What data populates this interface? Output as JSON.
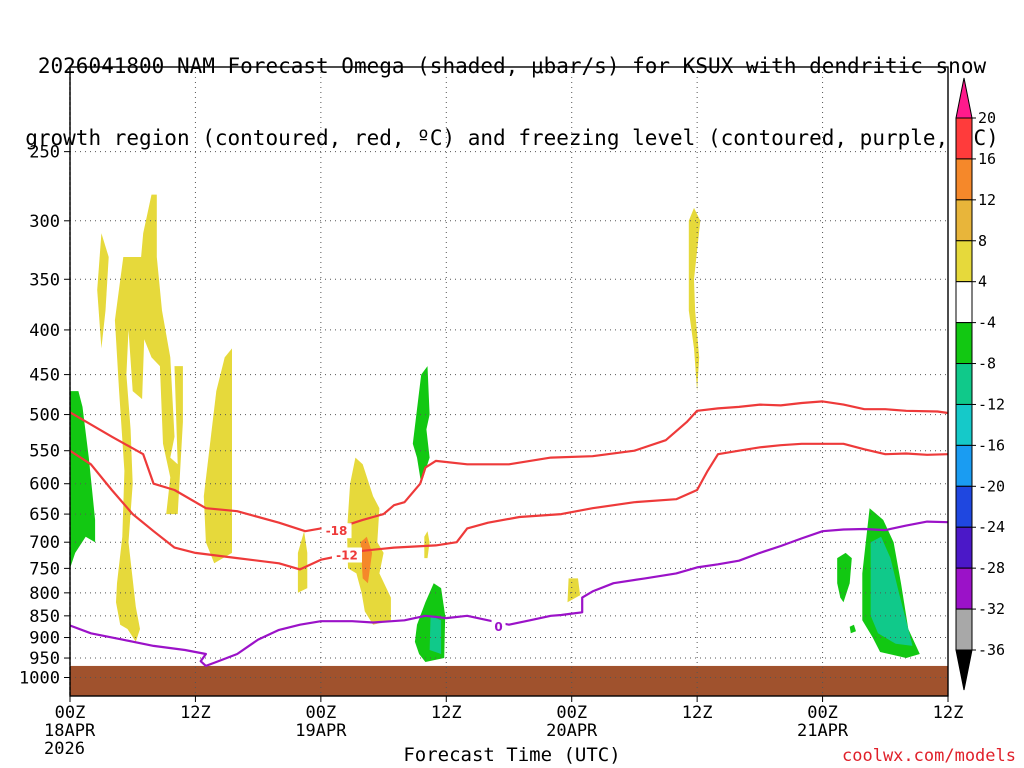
{
  "title_lines": [
    "2026041800 NAM Forecast Omega (shaded, μbar/s) for KSUX with dendritic snow",
    "growth region (contoured, red, ºC) and freezing level (contoured, purple, ºC)"
  ],
  "x_axis_title": "Forecast Time (UTC)",
  "credit": "coolwx.com/models",
  "chart_data": {
    "type": "time-height cross section",
    "station": "KSUX",
    "run": "2026041800",
    "x_unit": "forecast hour",
    "x_range": [
      0,
      84
    ],
    "x_ticks": [
      {
        "hour": 0,
        "lines": [
          "00Z",
          "18APR",
          "2026"
        ]
      },
      {
        "hour": 12,
        "lines": [
          "12Z"
        ]
      },
      {
        "hour": 24,
        "lines": [
          "00Z",
          "19APR"
        ]
      },
      {
        "hour": 36,
        "lines": [
          "12Z"
        ]
      },
      {
        "hour": 48,
        "lines": [
          "00Z",
          "20APR"
        ]
      },
      {
        "hour": 60,
        "lines": [
          "12Z"
        ]
      },
      {
        "hour": 72,
        "lines": [
          "00Z",
          "21APR"
        ]
      },
      {
        "hour": 84,
        "lines": [
          "12Z"
        ]
      }
    ],
    "y_unit": "hPa",
    "y_range": [
      1050,
      200
    ],
    "y_ticks": [
      250,
      300,
      350,
      400,
      450,
      500,
      550,
      600,
      650,
      700,
      750,
      800,
      850,
      900,
      950,
      1000
    ],
    "colorbar": {
      "ticks": [
        "20",
        "16",
        "12",
        "8",
        "4",
        "-4",
        "-8",
        "-12",
        "-16",
        "-20",
        "-24",
        "-28",
        "-32",
        "-36"
      ],
      "colors": [
        "#ff1a8c",
        "#ff3b3b",
        "#f5882a",
        "#e8b53a",
        "#e6d93b",
        "#ffffff",
        "#12c812",
        "#10c98a",
        "#15c9c9",
        "#1a9cf2",
        "#1f47e0",
        "#4b18c8",
        "#9b12c8",
        "#a8a8a8",
        "#000000"
      ]
    },
    "shaded_regions": [
      {
        "color": "#e6d93b",
        "points": [
          [
            3.0,
            310
          ],
          [
            3.7,
            330
          ],
          [
            3.4,
            380
          ],
          [
            3.0,
            420
          ],
          [
            2.6,
            360
          ]
        ]
      },
      {
        "color": "#e6d93b",
        "points": [
          [
            4.5,
            780
          ],
          [
            5.0,
            690
          ],
          [
            5.2,
            580
          ],
          [
            4.7,
            470
          ],
          [
            4.3,
            390
          ],
          [
            5.1,
            330
          ],
          [
            6.8,
            330
          ],
          [
            7.0,
            310
          ],
          [
            7.8,
            280
          ],
          [
            8.3,
            280
          ],
          [
            8.3,
            330
          ],
          [
            8.8,
            380
          ],
          [
            9.6,
            430
          ],
          [
            10.0,
            530
          ],
          [
            9.6,
            560
          ],
          [
            10.3,
            570
          ],
          [
            10.0,
            440
          ],
          [
            10.8,
            440
          ],
          [
            10.8,
            510
          ],
          [
            10.3,
            650
          ],
          [
            9.2,
            650
          ],
          [
            9.6,
            590
          ],
          [
            8.9,
            540
          ],
          [
            8.6,
            440
          ],
          [
            7.8,
            430
          ],
          [
            7.1,
            410
          ],
          [
            6.9,
            480
          ],
          [
            6.0,
            470
          ],
          [
            5.6,
            400
          ],
          [
            5.4,
            450
          ],
          [
            5.8,
            520
          ],
          [
            6.0,
            600
          ],
          [
            5.6,
            700
          ],
          [
            6.3,
            830
          ],
          [
            6.7,
            880
          ],
          [
            6.3,
            910
          ],
          [
            5.5,
            880
          ],
          [
            4.8,
            870
          ],
          [
            4.4,
            820
          ]
        ]
      },
      {
        "color": "#e6d93b",
        "points": [
          [
            12.8,
            620
          ],
          [
            14.0,
            470
          ],
          [
            14.8,
            430
          ],
          [
            15.5,
            420
          ],
          [
            15.5,
            500
          ],
          [
            15.5,
            720
          ],
          [
            13.8,
            740
          ],
          [
            13.0,
            700
          ]
        ]
      },
      {
        "color": "#e6d93b",
        "points": [
          [
            21.8,
            720
          ],
          [
            22.4,
            680
          ],
          [
            22.7,
            720
          ],
          [
            22.7,
            790
          ],
          [
            21.8,
            800
          ]
        ]
      },
      {
        "color": "#e6d93b",
        "points": [
          [
            26.5,
            680
          ],
          [
            26.8,
            600
          ],
          [
            27.3,
            560
          ],
          [
            28.0,
            570
          ],
          [
            29.0,
            620
          ],
          [
            29.6,
            640
          ],
          [
            29.4,
            700
          ],
          [
            30.0,
            720
          ],
          [
            29.6,
            760
          ],
          [
            30.7,
            810
          ],
          [
            30.7,
            860
          ],
          [
            29.0,
            870
          ],
          [
            28.2,
            840
          ],
          [
            27.9,
            800
          ],
          [
            27.4,
            760
          ],
          [
            26.6,
            750
          ]
        ]
      },
      {
        "color": "#f5882a",
        "points": [
          [
            27.8,
            700
          ],
          [
            28.4,
            690
          ],
          [
            28.9,
            720
          ],
          [
            28.5,
            780
          ],
          [
            28.0,
            770
          ]
        ]
      },
      {
        "color": "#e6d93b",
        "points": [
          [
            33.9,
            690
          ],
          [
            34.2,
            680
          ],
          [
            34.4,
            700
          ],
          [
            34.2,
            730
          ],
          [
            33.9,
            730
          ]
        ]
      },
      {
        "color": "#e6d93b",
        "points": [
          [
            47.7,
            770
          ],
          [
            48.6,
            770
          ],
          [
            48.8,
            805
          ],
          [
            47.6,
            820
          ]
        ]
      },
      {
        "color": "#e6d93b",
        "points": [
          [
            59.2,
            300
          ],
          [
            59.7,
            290
          ],
          [
            60.3,
            300
          ],
          [
            59.7,
            350
          ],
          [
            59.8,
            380
          ],
          [
            60.2,
            430
          ],
          [
            60.0,
            470
          ],
          [
            59.7,
            420
          ],
          [
            59.2,
            380
          ]
        ]
      },
      {
        "color": "#12c812",
        "points": [
          [
            0.0,
            470
          ],
          [
            0.8,
            470
          ],
          [
            1.2,
            490
          ],
          [
            1.8,
            560
          ],
          [
            2.4,
            660
          ],
          [
            2.4,
            700
          ],
          [
            1.5,
            690
          ],
          [
            0.5,
            720
          ],
          [
            0.0,
            750
          ]
        ]
      },
      {
        "color": "#12c812",
        "points": [
          [
            32.8,
            540
          ],
          [
            33.6,
            450
          ],
          [
            34.2,
            440
          ],
          [
            34.4,
            500
          ],
          [
            34.1,
            520
          ],
          [
            34.4,
            560
          ],
          [
            33.6,
            600
          ],
          [
            33.2,
            560
          ]
        ]
      },
      {
        "color": "#12c812",
        "points": [
          [
            33.2,
            870
          ],
          [
            34.0,
            820
          ],
          [
            34.8,
            780
          ],
          [
            35.5,
            790
          ],
          [
            35.9,
            850
          ],
          [
            35.8,
            950
          ],
          [
            34.0,
            960
          ],
          [
            33.4,
            940
          ],
          [
            33.0,
            910
          ]
        ]
      },
      {
        "color": "#10c98a",
        "points": [
          [
            34.5,
            850
          ],
          [
            35.5,
            860
          ],
          [
            35.5,
            940
          ],
          [
            34.4,
            930
          ]
        ]
      },
      {
        "color": "#12c812",
        "points": [
          [
            73.4,
            730
          ],
          [
            74.2,
            720
          ],
          [
            74.8,
            730
          ],
          [
            74.6,
            780
          ],
          [
            74.0,
            820
          ],
          [
            73.7,
            810
          ],
          [
            73.4,
            780
          ]
        ]
      },
      {
        "color": "#12c812",
        "points": [
          [
            75.8,
            760
          ],
          [
            76.5,
            640
          ],
          [
            77.8,
            660
          ],
          [
            78.8,
            700
          ],
          [
            79.5,
            780
          ],
          [
            80.2,
            880
          ],
          [
            81.3,
            940
          ],
          [
            80.0,
            950
          ],
          [
            77.5,
            935
          ],
          [
            76.8,
            900
          ],
          [
            75.8,
            860
          ]
        ]
      },
      {
        "color": "#10c98a",
        "points": [
          [
            76.6,
            700
          ],
          [
            77.6,
            690
          ],
          [
            78.5,
            730
          ],
          [
            79.3,
            800
          ],
          [
            80.1,
            870
          ],
          [
            80.6,
            920
          ],
          [
            79.0,
            915
          ],
          [
            77.3,
            890
          ],
          [
            76.6,
            850
          ]
        ]
      },
      {
        "color": "#12c812",
        "points": [
          [
            74.6,
            875
          ],
          [
            75.0,
            870
          ],
          [
            75.2,
            885
          ],
          [
            74.7,
            890
          ]
        ]
      }
    ],
    "contours": [
      {
        "label": "-18",
        "color": "#ee3a3a",
        "label_at": [
          25.5,
          680
        ],
        "points": [
          [
            0,
            497
          ],
          [
            4,
            530
          ],
          [
            7,
            555
          ],
          [
            8,
            600
          ],
          [
            10,
            610
          ],
          [
            13,
            640
          ],
          [
            16,
            645
          ],
          [
            20,
            665
          ],
          [
            22.5,
            680
          ],
          [
            24,
            675
          ],
          [
            26,
            672
          ],
          [
            28,
            660
          ],
          [
            30,
            650
          ],
          [
            31,
            635
          ],
          [
            32,
            630
          ],
          [
            33.5,
            600
          ],
          [
            34,
            575
          ],
          [
            35,
            565
          ],
          [
            38,
            570
          ],
          [
            42,
            570
          ],
          [
            46,
            560
          ],
          [
            50,
            558
          ],
          [
            54,
            550
          ],
          [
            57,
            535
          ],
          [
            59,
            510
          ],
          [
            60,
            495
          ],
          [
            62,
            492
          ],
          [
            64,
            490
          ],
          [
            66,
            487
          ],
          [
            68,
            488
          ],
          [
            70,
            485
          ],
          [
            72,
            483
          ],
          [
            74,
            487
          ],
          [
            76,
            493
          ],
          [
            78,
            493
          ],
          [
            80,
            495
          ],
          [
            83,
            496
          ],
          [
            84,
            498
          ]
        ]
      },
      {
        "label": "-12",
        "color": "#ee3a3a",
        "label_at": [
          26.5,
          725
        ],
        "points": [
          [
            0,
            550
          ],
          [
            2,
            570
          ],
          [
            4,
            610
          ],
          [
            6,
            650
          ],
          [
            8,
            680
          ],
          [
            10,
            710
          ],
          [
            12,
            720
          ],
          [
            16,
            730
          ],
          [
            20,
            740
          ],
          [
            22,
            752
          ],
          [
            24,
            733
          ],
          [
            26,
            725
          ],
          [
            28,
            716
          ],
          [
            31,
            710
          ],
          [
            35,
            706
          ],
          [
            37,
            700
          ],
          [
            38,
            675
          ],
          [
            40,
            665
          ],
          [
            43,
            655
          ],
          [
            47,
            650
          ],
          [
            50,
            640
          ],
          [
            54,
            630
          ],
          [
            58,
            625
          ],
          [
            60,
            610
          ],
          [
            61,
            580
          ],
          [
            62,
            555
          ],
          [
            64,
            550
          ],
          [
            66,
            545
          ],
          [
            68,
            542
          ],
          [
            70,
            540
          ],
          [
            72,
            540
          ],
          [
            74,
            540
          ],
          [
            76,
            548
          ],
          [
            78,
            555
          ],
          [
            80,
            554
          ],
          [
            82,
            556
          ],
          [
            84,
            555
          ]
        ]
      },
      {
        "label": "0",
        "color": "#9b12c8",
        "label_at": [
          41,
          875
        ],
        "points": [
          [
            0,
            872
          ],
          [
            2,
            890
          ],
          [
            5,
            905
          ],
          [
            8,
            920
          ],
          [
            11,
            930
          ],
          [
            13,
            940
          ],
          [
            12.5,
            958
          ],
          [
            13,
            970
          ],
          [
            14,
            960
          ],
          [
            16,
            940
          ],
          [
            18,
            905
          ],
          [
            20,
            882
          ],
          [
            22,
            870
          ],
          [
            24,
            862
          ],
          [
            27,
            862
          ],
          [
            29,
            865
          ],
          [
            32,
            860
          ],
          [
            34,
            850
          ],
          [
            36,
            855
          ],
          [
            38,
            850
          ],
          [
            40,
            860
          ],
          [
            42,
            870
          ],
          [
            44,
            860
          ],
          [
            46,
            850
          ],
          [
            47,
            848
          ],
          [
            48,
            845
          ],
          [
            49,
            842
          ],
          [
            49,
            810
          ],
          [
            50,
            797
          ],
          [
            52,
            780
          ],
          [
            55,
            770
          ],
          [
            58,
            760
          ],
          [
            60,
            748
          ],
          [
            62,
            742
          ],
          [
            64,
            735
          ],
          [
            66,
            720
          ],
          [
            68,
            707
          ],
          [
            70,
            693
          ],
          [
            72,
            680
          ],
          [
            74,
            677
          ],
          [
            76,
            676
          ],
          [
            78,
            678
          ],
          [
            80,
            670
          ],
          [
            82,
            663
          ],
          [
            84,
            664
          ]
        ]
      }
    ],
    "surface_color": "#a0522d",
    "surface_top_hPa": 970
  }
}
